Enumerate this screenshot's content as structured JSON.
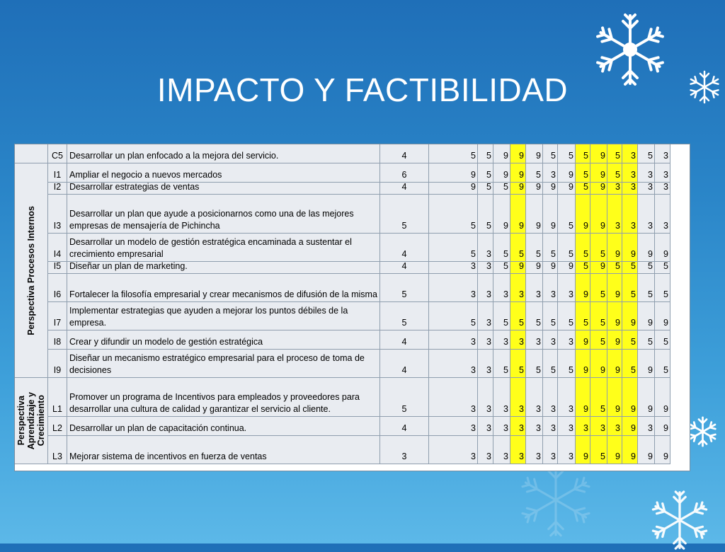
{
  "slide": {
    "title": "IMPACTO Y FACTIBILIDAD"
  },
  "colors": {
    "background": "#2a85c8",
    "highlight": "#ffff1a",
    "cell": "#e9ecf1"
  },
  "groups": [
    {
      "label": "Perspectiva Procesos Internos",
      "row_start": 2,
      "row_end": 11
    },
    {
      "label": "Perspectiva\nAprendizaje y\nCrecimiento",
      "row_start": 11,
      "row_end": 14
    }
  ],
  "highlight_columns": [
    3,
    7,
    8,
    9,
    10
  ],
  "rows": [
    {
      "code": "C5",
      "desc": "Desarrollar un plan enfocado a la mejora del servicio.",
      "score": "4",
      "values": [
        "5",
        "5",
        "9",
        "9",
        "9",
        "5",
        "5",
        "5",
        "9",
        "5",
        "3",
        "5",
        "3"
      ]
    },
    {
      "code": "I1",
      "desc": "Ampliar el negocio a nuevos mercados",
      "score": "6",
      "values": [
        "9",
        "5",
        "9",
        "9",
        "5",
        "3",
        "9",
        "5",
        "9",
        "5",
        "3",
        "3",
        "3"
      ]
    },
    {
      "code": "I2",
      "desc": "Desarrollar estrategias de ventas",
      "score": "4",
      "values": [
        "9",
        "5",
        "5",
        "9",
        "9",
        "9",
        "9",
        "5",
        "9",
        "3",
        "3",
        "3",
        "3"
      ]
    },
    {
      "code": "I3",
      "desc": "Desarrollar un plan que ayude a posicionarnos como  una de las mejores empresas de mensajería de Pichincha",
      "score": "5",
      "values": [
        "5",
        "5",
        "9",
        "9",
        "9",
        "9",
        "5",
        "9",
        "9",
        "3",
        "3",
        "3",
        "3"
      ]
    },
    {
      "code": "I4",
      "desc": "Desarrollar un modelo de gestión estratégica encaminada a sustentar el crecimiento empresarial",
      "score": "4",
      "values": [
        "5",
        "3",
        "5",
        "5",
        "5",
        "5",
        "5",
        "5",
        "5",
        "9",
        "9",
        "9",
        "9"
      ]
    },
    {
      "code": "I5",
      "desc": "Diseñar un plan de marketing.",
      "score": "4",
      "values": [
        "3",
        "3",
        "5",
        "9",
        "9",
        "9",
        "9",
        "5",
        "9",
        "5",
        "5",
        "5",
        "5"
      ]
    },
    {
      "code": "I6",
      "desc": "Fortalecer la filosofía empresarial y crear mecanismos de difusión de la misma",
      "score": "5",
      "values": [
        "3",
        "3",
        "3",
        "3",
        "3",
        "3",
        "3",
        "9",
        "5",
        "9",
        "5",
        "5",
        "5"
      ]
    },
    {
      "code": "I7",
      "desc": "Implementar estrategias que ayuden a mejorar los puntos débiles de la empresa.",
      "score": "5",
      "values": [
        "5",
        "3",
        "5",
        "5",
        "5",
        "5",
        "5",
        "5",
        "5",
        "9",
        "9",
        "9",
        "9"
      ]
    },
    {
      "code": "I8",
      "desc": "Crear y difundir un modelo de gestión estratégica",
      "score": "4",
      "values": [
        "3",
        "3",
        "3",
        "3",
        "3",
        "3",
        "3",
        "9",
        "5",
        "9",
        "5",
        "5",
        "5"
      ]
    },
    {
      "code": "I9",
      "desc": "Diseñar un mecanismo estratégico empresarial para el proceso de toma de decisiones",
      "score": "4",
      "values": [
        "3",
        "3",
        "5",
        "5",
        "5",
        "5",
        "5",
        "9",
        "9",
        "9",
        "5",
        "9",
        "5"
      ]
    },
    {
      "code": "L1",
      "desc": "Promover un programa de Incentivos  para empleados y proveedores para desarrollar una cultura de calidad y garantizar el servicio al cliente.",
      "score": "5",
      "values": [
        "3",
        "3",
        "3",
        "3",
        "3",
        "3",
        "3",
        "9",
        "5",
        "9",
        "9",
        "9",
        "9"
      ]
    },
    {
      "code": "L2",
      "desc": "Desarrollar un plan de capacitación continua.",
      "score": "4",
      "values": [
        "3",
        "3",
        "3",
        "3",
        "3",
        "3",
        "3",
        "3",
        "3",
        "3",
        "9",
        "3",
        "9"
      ]
    },
    {
      "code": "L3",
      "desc": "Mejorar sistema de incentivos en fuerza de ventas",
      "score": "3",
      "values": [
        "3",
        "3",
        "3",
        "3",
        "3",
        "3",
        "3",
        "9",
        "5",
        "9",
        "9",
        "9",
        "9"
      ]
    }
  ]
}
